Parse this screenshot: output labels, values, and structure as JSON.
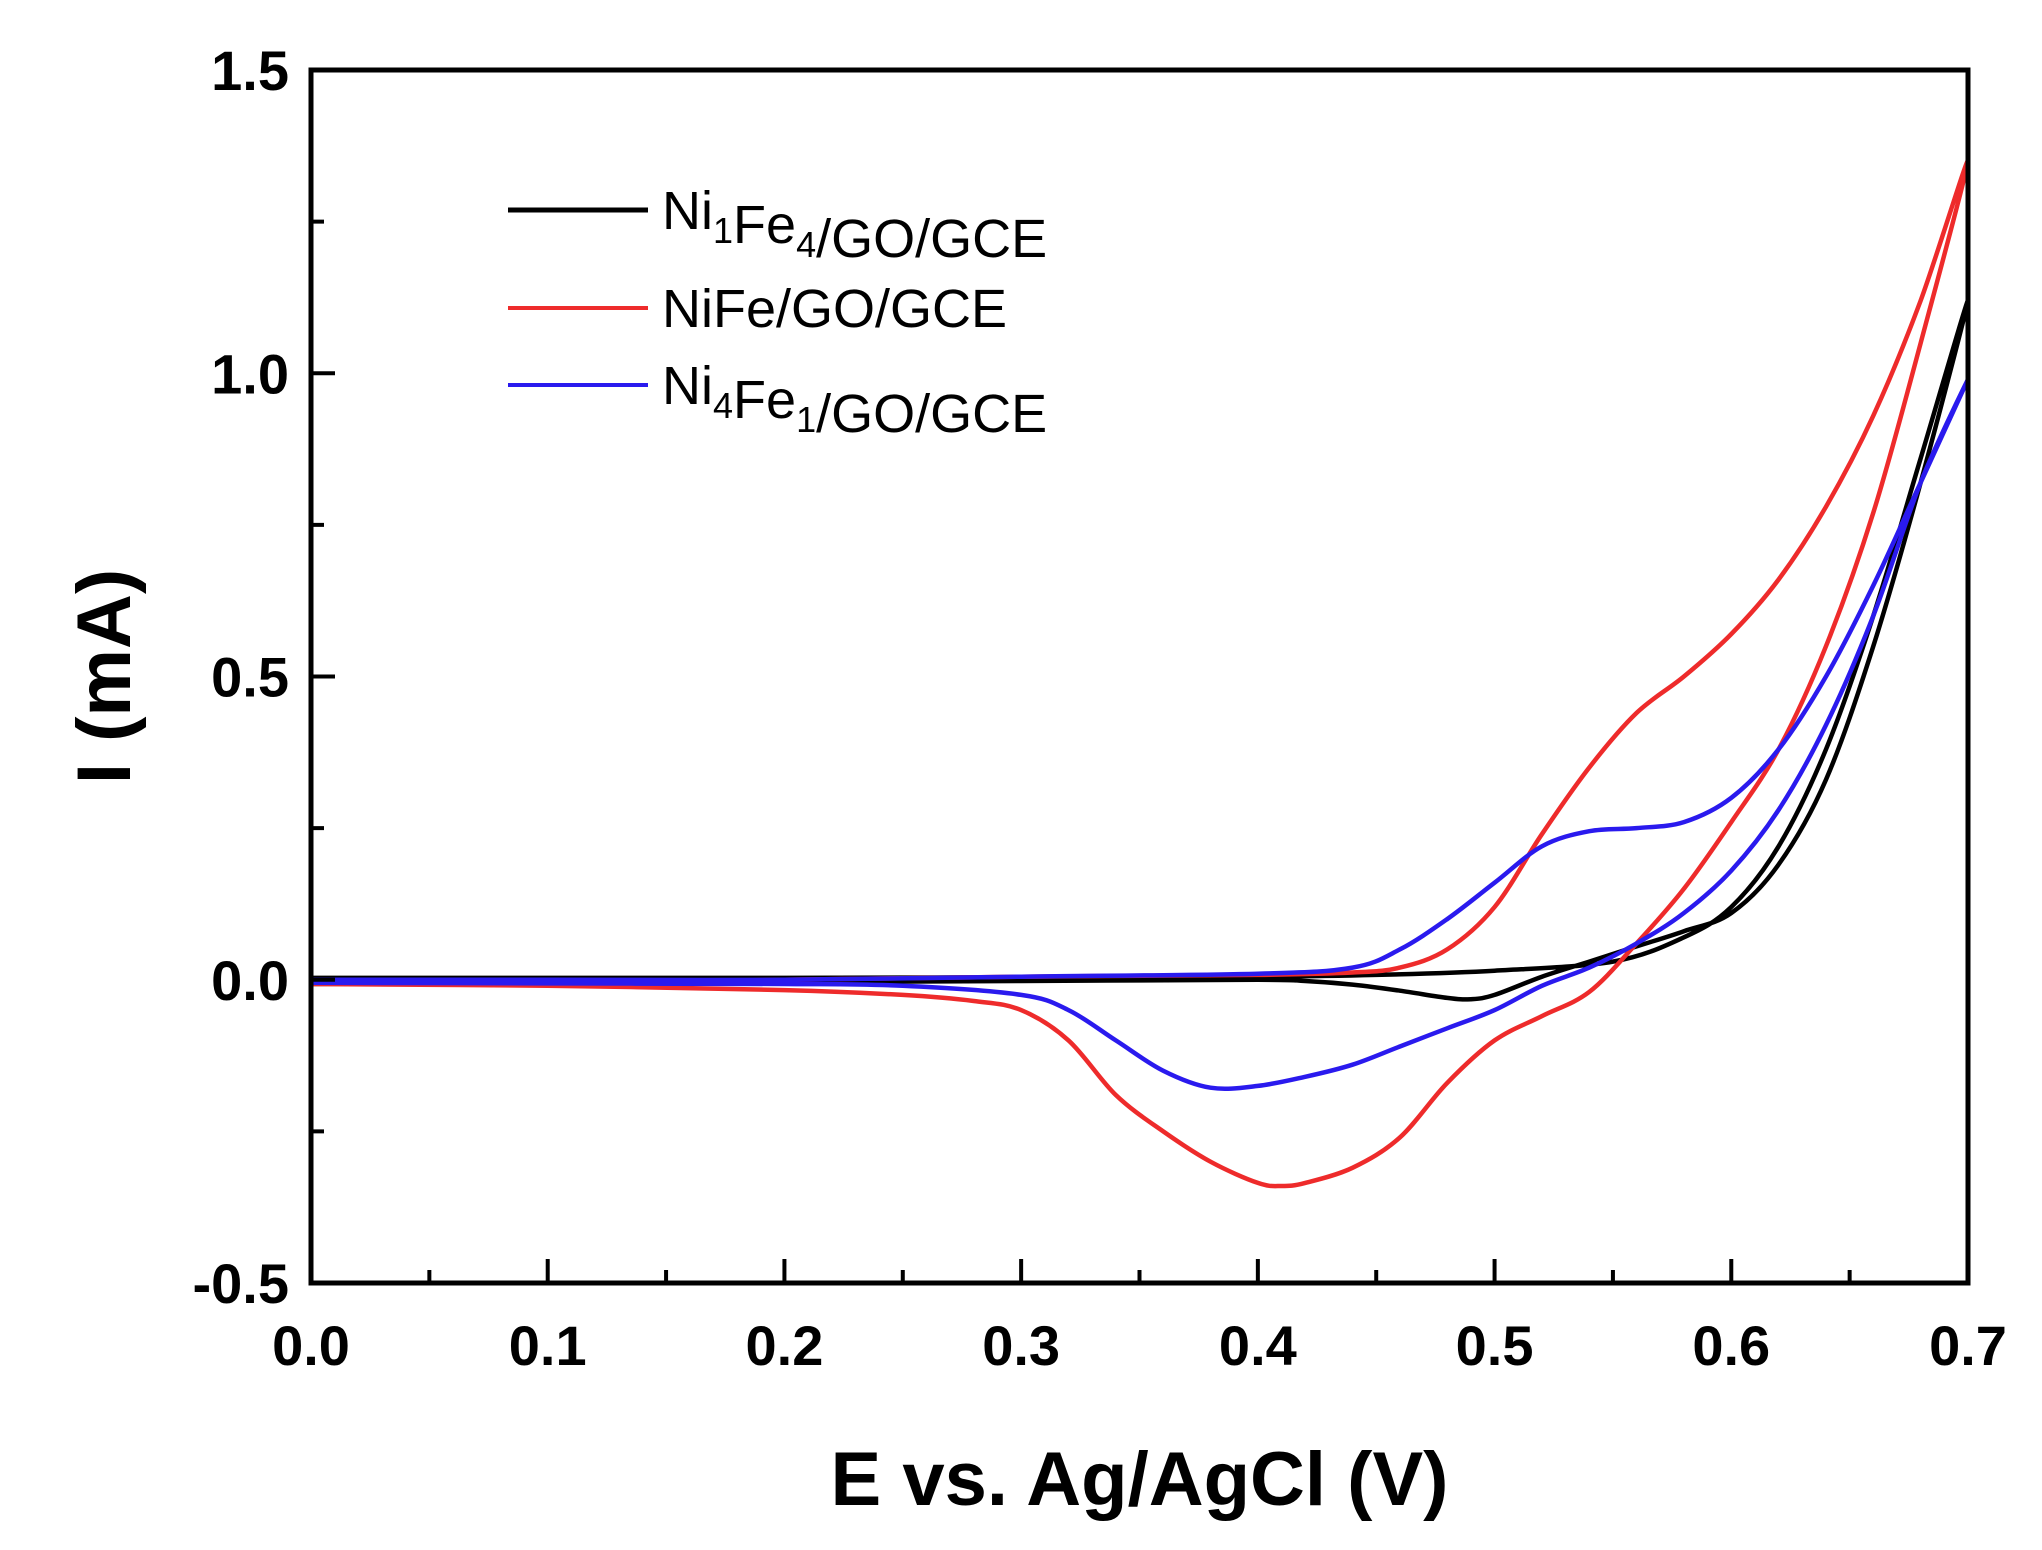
{
  "chart_data": {
    "type": "line",
    "xlabel": "E vs. Ag/AgCl (V)",
    "ylabel": "I (mA)",
    "xlim": [
      0.0,
      0.7
    ],
    "ylim": [
      -0.5,
      1.5
    ],
    "x_ticks": [
      0.0,
      0.1,
      0.2,
      0.3,
      0.4,
      0.5,
      0.6,
      0.7
    ],
    "x_tick_labels": [
      "0.0",
      "0.1",
      "0.2",
      "0.3",
      "0.4",
      "0.5",
      "0.6",
      "0.7"
    ],
    "y_ticks": [
      -0.5,
      0.0,
      0.5,
      1.0,
      1.5
    ],
    "y_tick_labels": [
      "-0.5",
      "0.0",
      "0.5",
      "1.0",
      "1.5"
    ],
    "grid": false,
    "legend_position": "top-left",
    "series": [
      {
        "name": "Ni1Fe4/GO/GCE",
        "legend_parts": [
          [
            "Ni",
            ""
          ],
          [
            "1",
            "sub"
          ],
          [
            "Fe",
            ""
          ],
          [
            "4",
            "sub"
          ],
          [
            "/GO/GCE",
            ""
          ]
        ],
        "color": "#000000",
        "points": [
          [
            0.0,
            0.003
          ],
          [
            0.1,
            0.003
          ],
          [
            0.2,
            0.003
          ],
          [
            0.3,
            0.004
          ],
          [
            0.4,
            0.005
          ],
          [
            0.45,
            0.008
          ],
          [
            0.5,
            0.015
          ],
          [
            0.55,
            0.03
          ],
          [
            0.58,
            0.07
          ],
          [
            0.6,
            0.12
          ],
          [
            0.62,
            0.22
          ],
          [
            0.64,
            0.38
          ],
          [
            0.66,
            0.6
          ],
          [
            0.68,
            0.86
          ],
          [
            0.7,
            1.12
          ],
          [
            0.68,
            0.82
          ],
          [
            0.66,
            0.55
          ],
          [
            0.64,
            0.33
          ],
          [
            0.62,
            0.19
          ],
          [
            0.6,
            0.11
          ],
          [
            0.58,
            0.08
          ],
          [
            0.56,
            0.055
          ],
          [
            0.54,
            0.03
          ],
          [
            0.52,
            0.005
          ],
          [
            0.5,
            -0.025
          ],
          [
            0.49,
            -0.032
          ],
          [
            0.48,
            -0.03
          ],
          [
            0.46,
            -0.018
          ],
          [
            0.44,
            -0.008
          ],
          [
            0.42,
            -0.002
          ],
          [
            0.4,
            0.0
          ],
          [
            0.3,
            -0.002
          ],
          [
            0.2,
            -0.004
          ],
          [
            0.1,
            -0.005
          ],
          [
            0.0,
            -0.007
          ]
        ]
      },
      {
        "name": "NiFe/GO/GCE",
        "legend_parts": [
          [
            "NiFe/GO/GCE",
            ""
          ]
        ],
        "color": "#ee2b2b",
        "points": [
          [
            0.0,
            -0.007
          ],
          [
            0.1,
            -0.005
          ],
          [
            0.2,
            0.0
          ],
          [
            0.3,
            0.005
          ],
          [
            0.4,
            0.008
          ],
          [
            0.44,
            0.012
          ],
          [
            0.46,
            0.02
          ],
          [
            0.48,
            0.05
          ],
          [
            0.5,
            0.12
          ],
          [
            0.52,
            0.24
          ],
          [
            0.54,
            0.35
          ],
          [
            0.56,
            0.44
          ],
          [
            0.58,
            0.5
          ],
          [
            0.6,
            0.57
          ],
          [
            0.62,
            0.66
          ],
          [
            0.64,
            0.78
          ],
          [
            0.66,
            0.93
          ],
          [
            0.68,
            1.12
          ],
          [
            0.7,
            1.35
          ],
          [
            0.68,
            1.05
          ],
          [
            0.66,
            0.77
          ],
          [
            0.64,
            0.55
          ],
          [
            0.62,
            0.38
          ],
          [
            0.6,
            0.26
          ],
          [
            0.58,
            0.15
          ],
          [
            0.56,
            0.06
          ],
          [
            0.54,
            -0.02
          ],
          [
            0.52,
            -0.06
          ],
          [
            0.5,
            -0.1
          ],
          [
            0.48,
            -0.17
          ],
          [
            0.46,
            -0.26
          ],
          [
            0.44,
            -0.31
          ],
          [
            0.42,
            -0.335
          ],
          [
            0.41,
            -0.34
          ],
          [
            0.4,
            -0.335
          ],
          [
            0.38,
            -0.3
          ],
          [
            0.36,
            -0.25
          ],
          [
            0.34,
            -0.19
          ],
          [
            0.32,
            -0.1
          ],
          [
            0.3,
            -0.05
          ],
          [
            0.28,
            -0.035
          ],
          [
            0.25,
            -0.025
          ],
          [
            0.2,
            -0.017
          ],
          [
            0.1,
            -0.01
          ],
          [
            0.0,
            -0.007
          ]
        ]
      },
      {
        "name": "Ni4Fe1/GO/GCE",
        "legend_parts": [
          [
            "Ni",
            ""
          ],
          [
            "4",
            "sub"
          ],
          [
            "Fe",
            ""
          ],
          [
            "1",
            "sub"
          ],
          [
            "/GO/GCE",
            ""
          ]
        ],
        "color": "#2a1aee",
        "points": [
          [
            0.0,
            0.0
          ],
          [
            0.1,
            0.0
          ],
          [
            0.2,
            0.0
          ],
          [
            0.3,
            0.005
          ],
          [
            0.4,
            0.01
          ],
          [
            0.44,
            0.02
          ],
          [
            0.46,
            0.05
          ],
          [
            0.48,
            0.1
          ],
          [
            0.5,
            0.16
          ],
          [
            0.52,
            0.22
          ],
          [
            0.54,
            0.245
          ],
          [
            0.56,
            0.25
          ],
          [
            0.58,
            0.26
          ],
          [
            0.6,
            0.3
          ],
          [
            0.62,
            0.38
          ],
          [
            0.64,
            0.5
          ],
          [
            0.66,
            0.65
          ],
          [
            0.68,
            0.82
          ],
          [
            0.7,
            0.99
          ],
          [
            0.68,
            0.82
          ],
          [
            0.66,
            0.6
          ],
          [
            0.64,
            0.42
          ],
          [
            0.62,
            0.28
          ],
          [
            0.6,
            0.18
          ],
          [
            0.58,
            0.11
          ],
          [
            0.56,
            0.06
          ],
          [
            0.54,
            0.02
          ],
          [
            0.52,
            -0.01
          ],
          [
            0.5,
            -0.05
          ],
          [
            0.48,
            -0.08
          ],
          [
            0.46,
            -0.11
          ],
          [
            0.44,
            -0.14
          ],
          [
            0.42,
            -0.16
          ],
          [
            0.4,
            -0.175
          ],
          [
            0.38,
            -0.178
          ],
          [
            0.36,
            -0.15
          ],
          [
            0.34,
            -0.1
          ],
          [
            0.32,
            -0.05
          ],
          [
            0.3,
            -0.025
          ],
          [
            0.25,
            -0.01
          ],
          [
            0.2,
            -0.007
          ],
          [
            0.1,
            -0.006
          ],
          [
            0.0,
            -0.005
          ]
        ]
      }
    ]
  }
}
